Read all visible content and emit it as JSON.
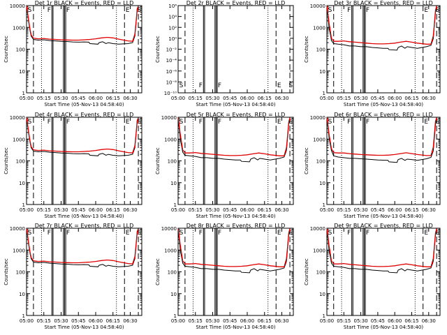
{
  "common": {
    "x_ticks": [
      "05:00",
      "05:15",
      "05:30",
      "05:45",
      "06:00",
      "06:15",
      "06:30"
    ],
    "x_tick_minutes": [
      0,
      15,
      30,
      45,
      60,
      75,
      90
    ],
    "xlim_minutes": [
      0,
      100
    ],
    "xlabel": "Start Time (05-Nov-13 04:58:40)",
    "ylabel": "Counts/sec",
    "y_ticks_counts": [
      "1",
      "10",
      "100",
      "1000",
      "10000"
    ],
    "y_ticks_tiny": [
      "10⁻¹⁰",
      "10⁻⁸",
      "10⁻⁶",
      "10⁻⁴",
      "10⁻²",
      "10⁰",
      "10²",
      "10⁴",
      "10⁶"
    ],
    "title_suffix": "BLACK = Events, RED = LLD",
    "marker_labels": {
      "S": "S",
      "F": "F",
      "E": "E"
    },
    "colors": {
      "events": "#000000",
      "lld": "#e00000"
    },
    "vlines": {
      "dashed_minutes": [
        6,
        85,
        97
      ],
      "dotted_minutes": [
        13,
        78
      ],
      "solid_minutes": [
        22,
        23,
        32,
        33,
        34
      ]
    }
  },
  "chart_data": [
    {
      "name": "Det 1r",
      "title": "Det 1r BLACK = Events, RED = LLD",
      "type": "line",
      "ylog": true,
      "ylim": [
        1,
        10000
      ],
      "level": "low"
    },
    {
      "name": "Det 2r",
      "title": "Det 2r BLACK = Events, RED = LLD",
      "type": "line",
      "ylog": true,
      "ylim": [
        1e-10,
        1000000.0
      ],
      "level": "empty"
    },
    {
      "name": "Det 3r",
      "title": "Det 3r BLACK = Events, RED = LLD",
      "type": "line",
      "ylog": true,
      "ylim": [
        1,
        10000
      ],
      "level": "high"
    },
    {
      "name": "Det 4r",
      "title": "Det 4r BLACK = Events, RED = LLD",
      "type": "line",
      "ylog": true,
      "ylim": [
        1,
        10000
      ],
      "level": "low"
    },
    {
      "name": "Det 5r",
      "title": "Det 5r BLACK = Events, RED = LLD",
      "type": "line",
      "ylog": true,
      "ylim": [
        1,
        10000
      ],
      "level": "high"
    },
    {
      "name": "Det 6r",
      "title": "Det 6r BLACK = Events, RED = LLD",
      "type": "line",
      "ylog": true,
      "ylim": [
        1,
        10000
      ],
      "level": "mid"
    },
    {
      "name": "Det 7r",
      "title": "Det 7r BLACK = Events, RED = LLD",
      "type": "line",
      "ylog": true,
      "ylim": [
        1,
        10000
      ],
      "level": "low"
    },
    {
      "name": "Det 8r",
      "title": "Det 8r BLACK = Events, RED = LLD",
      "type": "line",
      "ylog": true,
      "ylim": [
        1,
        10000
      ],
      "level": "high"
    },
    {
      "name": "Det 9r",
      "title": "Det 9r BLACK = Events, RED = LLD",
      "type": "line",
      "ylog": true,
      "ylim": [
        1,
        10000
      ],
      "level": "high"
    }
  ],
  "series_profile": {
    "low": {
      "events_points": [
        [
          0,
          9000
        ],
        [
          1,
          4000
        ],
        [
          2,
          1500
        ],
        [
          3,
          700
        ],
        [
          4,
          400
        ],
        [
          6,
          280
        ],
        [
          10,
          260
        ],
        [
          15,
          270
        ],
        [
          20,
          250
        ],
        [
          25,
          240
        ],
        [
          30,
          230
        ],
        [
          35,
          225
        ],
        [
          40,
          215
        ],
        [
          45,
          210
        ],
        [
          50,
          215
        ],
        [
          54,
          210
        ],
        [
          55,
          180
        ],
        [
          62,
          170
        ],
        [
          63,
          200
        ],
        [
          66,
          220
        ],
        [
          69,
          180
        ],
        [
          71,
          200
        ],
        [
          75,
          180
        ],
        [
          80,
          170
        ],
        [
          88,
          180
        ],
        [
          92,
          200
        ],
        [
          94,
          400
        ],
        [
          95,
          1500
        ],
        [
          96,
          6000
        ],
        [
          97,
          9000
        ]
      ],
      "lld_points": [
        [
          0,
          9500
        ],
        [
          1,
          4500
        ],
        [
          2,
          1800
        ],
        [
          3,
          800
        ],
        [
          4,
          450
        ],
        [
          6,
          320
        ],
        [
          10,
          300
        ],
        [
          15,
          310
        ],
        [
          20,
          290
        ],
        [
          25,
          280
        ],
        [
          30,
          270
        ],
        [
          35,
          265
        ],
        [
          40,
          260
        ],
        [
          45,
          260
        ],
        [
          50,
          270
        ],
        [
          55,
          280
        ],
        [
          60,
          300
        ],
        [
          65,
          330
        ],
        [
          70,
          350
        ],
        [
          75,
          330
        ],
        [
          80,
          290
        ],
        [
          88,
          240
        ],
        [
          92,
          230
        ],
        [
          94,
          500
        ],
        [
          95,
          1800
        ],
        [
          96,
          7000
        ],
        [
          97,
          9500
        ]
      ]
    },
    "high": {
      "events_points": [
        [
          0,
          9000
        ],
        [
          1,
          3000
        ],
        [
          2,
          900
        ],
        [
          3,
          500
        ],
        [
          4,
          250
        ],
        [
          6,
          180
        ],
        [
          10,
          170
        ],
        [
          15,
          160
        ],
        [
          20,
          140
        ],
        [
          25,
          140
        ],
        [
          30,
          130
        ],
        [
          35,
          130
        ],
        [
          40,
          120
        ],
        [
          45,
          115
        ],
        [
          50,
          110
        ],
        [
          54,
          110
        ],
        [
          55,
          95
        ],
        [
          62,
          90
        ],
        [
          63,
          120
        ],
        [
          66,
          140
        ],
        [
          69,
          110
        ],
        [
          71,
          130
        ],
        [
          75,
          120
        ],
        [
          80,
          110
        ],
        [
          88,
          130
        ],
        [
          92,
          150
        ],
        [
          94,
          300
        ],
        [
          95,
          1200
        ],
        [
          96,
          5000
        ],
        [
          97,
          9000
        ]
      ],
      "lld_points": [
        [
          0,
          9500
        ],
        [
          1,
          4000
        ],
        [
          2,
          1500
        ],
        [
          3,
          700
        ],
        [
          4,
          320
        ],
        [
          6,
          230
        ],
        [
          10,
          230
        ],
        [
          15,
          240
        ],
        [
          20,
          220
        ],
        [
          25,
          210
        ],
        [
          30,
          200
        ],
        [
          35,
          190
        ],
        [
          40,
          180
        ],
        [
          45,
          175
        ],
        [
          50,
          175
        ],
        [
          55,
          180
        ],
        [
          60,
          190
        ],
        [
          65,
          210
        ],
        [
          70,
          230
        ],
        [
          75,
          210
        ],
        [
          80,
          190
        ],
        [
          88,
          170
        ],
        [
          92,
          170
        ],
        [
          94,
          400
        ],
        [
          95,
          1500
        ],
        [
          96,
          6000
        ],
        [
          97,
          9500
        ]
      ]
    },
    "mid": {
      "events_points": [
        [
          0,
          9000
        ],
        [
          1,
          3500
        ],
        [
          2,
          1100
        ],
        [
          3,
          550
        ],
        [
          4,
          300
        ],
        [
          6,
          170
        ],
        [
          10,
          150
        ],
        [
          15,
          140
        ],
        [
          20,
          130
        ],
        [
          25,
          130
        ],
        [
          30,
          125
        ],
        [
          35,
          120
        ],
        [
          40,
          115
        ],
        [
          45,
          110
        ],
        [
          50,
          108
        ],
        [
          54,
          105
        ],
        [
          55,
          90
        ],
        [
          62,
          85
        ],
        [
          63,
          115
        ],
        [
          66,
          130
        ],
        [
          69,
          105
        ],
        [
          71,
          120
        ],
        [
          75,
          115
        ],
        [
          80,
          105
        ],
        [
          88,
          125
        ],
        [
          92,
          145
        ],
        [
          94,
          280
        ],
        [
          95,
          1100
        ],
        [
          96,
          4500
        ],
        [
          97,
          9000
        ]
      ],
      "lld_points": [
        [
          0,
          9500
        ],
        [
          1,
          4200
        ],
        [
          2,
          1600
        ],
        [
          3,
          750
        ],
        [
          4,
          360
        ],
        [
          6,
          240
        ],
        [
          10,
          230
        ],
        [
          15,
          230
        ],
        [
          20,
          215
        ],
        [
          25,
          205
        ],
        [
          30,
          195
        ],
        [
          35,
          190
        ],
        [
          40,
          185
        ],
        [
          45,
          180
        ],
        [
          50,
          180
        ],
        [
          55,
          185
        ],
        [
          60,
          195
        ],
        [
          65,
          215
        ],
        [
          70,
          235
        ],
        [
          75,
          215
        ],
        [
          80,
          195
        ],
        [
          88,
          175
        ],
        [
          92,
          175
        ],
        [
          94,
          420
        ],
        [
          95,
          1600
        ],
        [
          96,
          6500
        ],
        [
          97,
          9500
        ]
      ]
    }
  }
}
